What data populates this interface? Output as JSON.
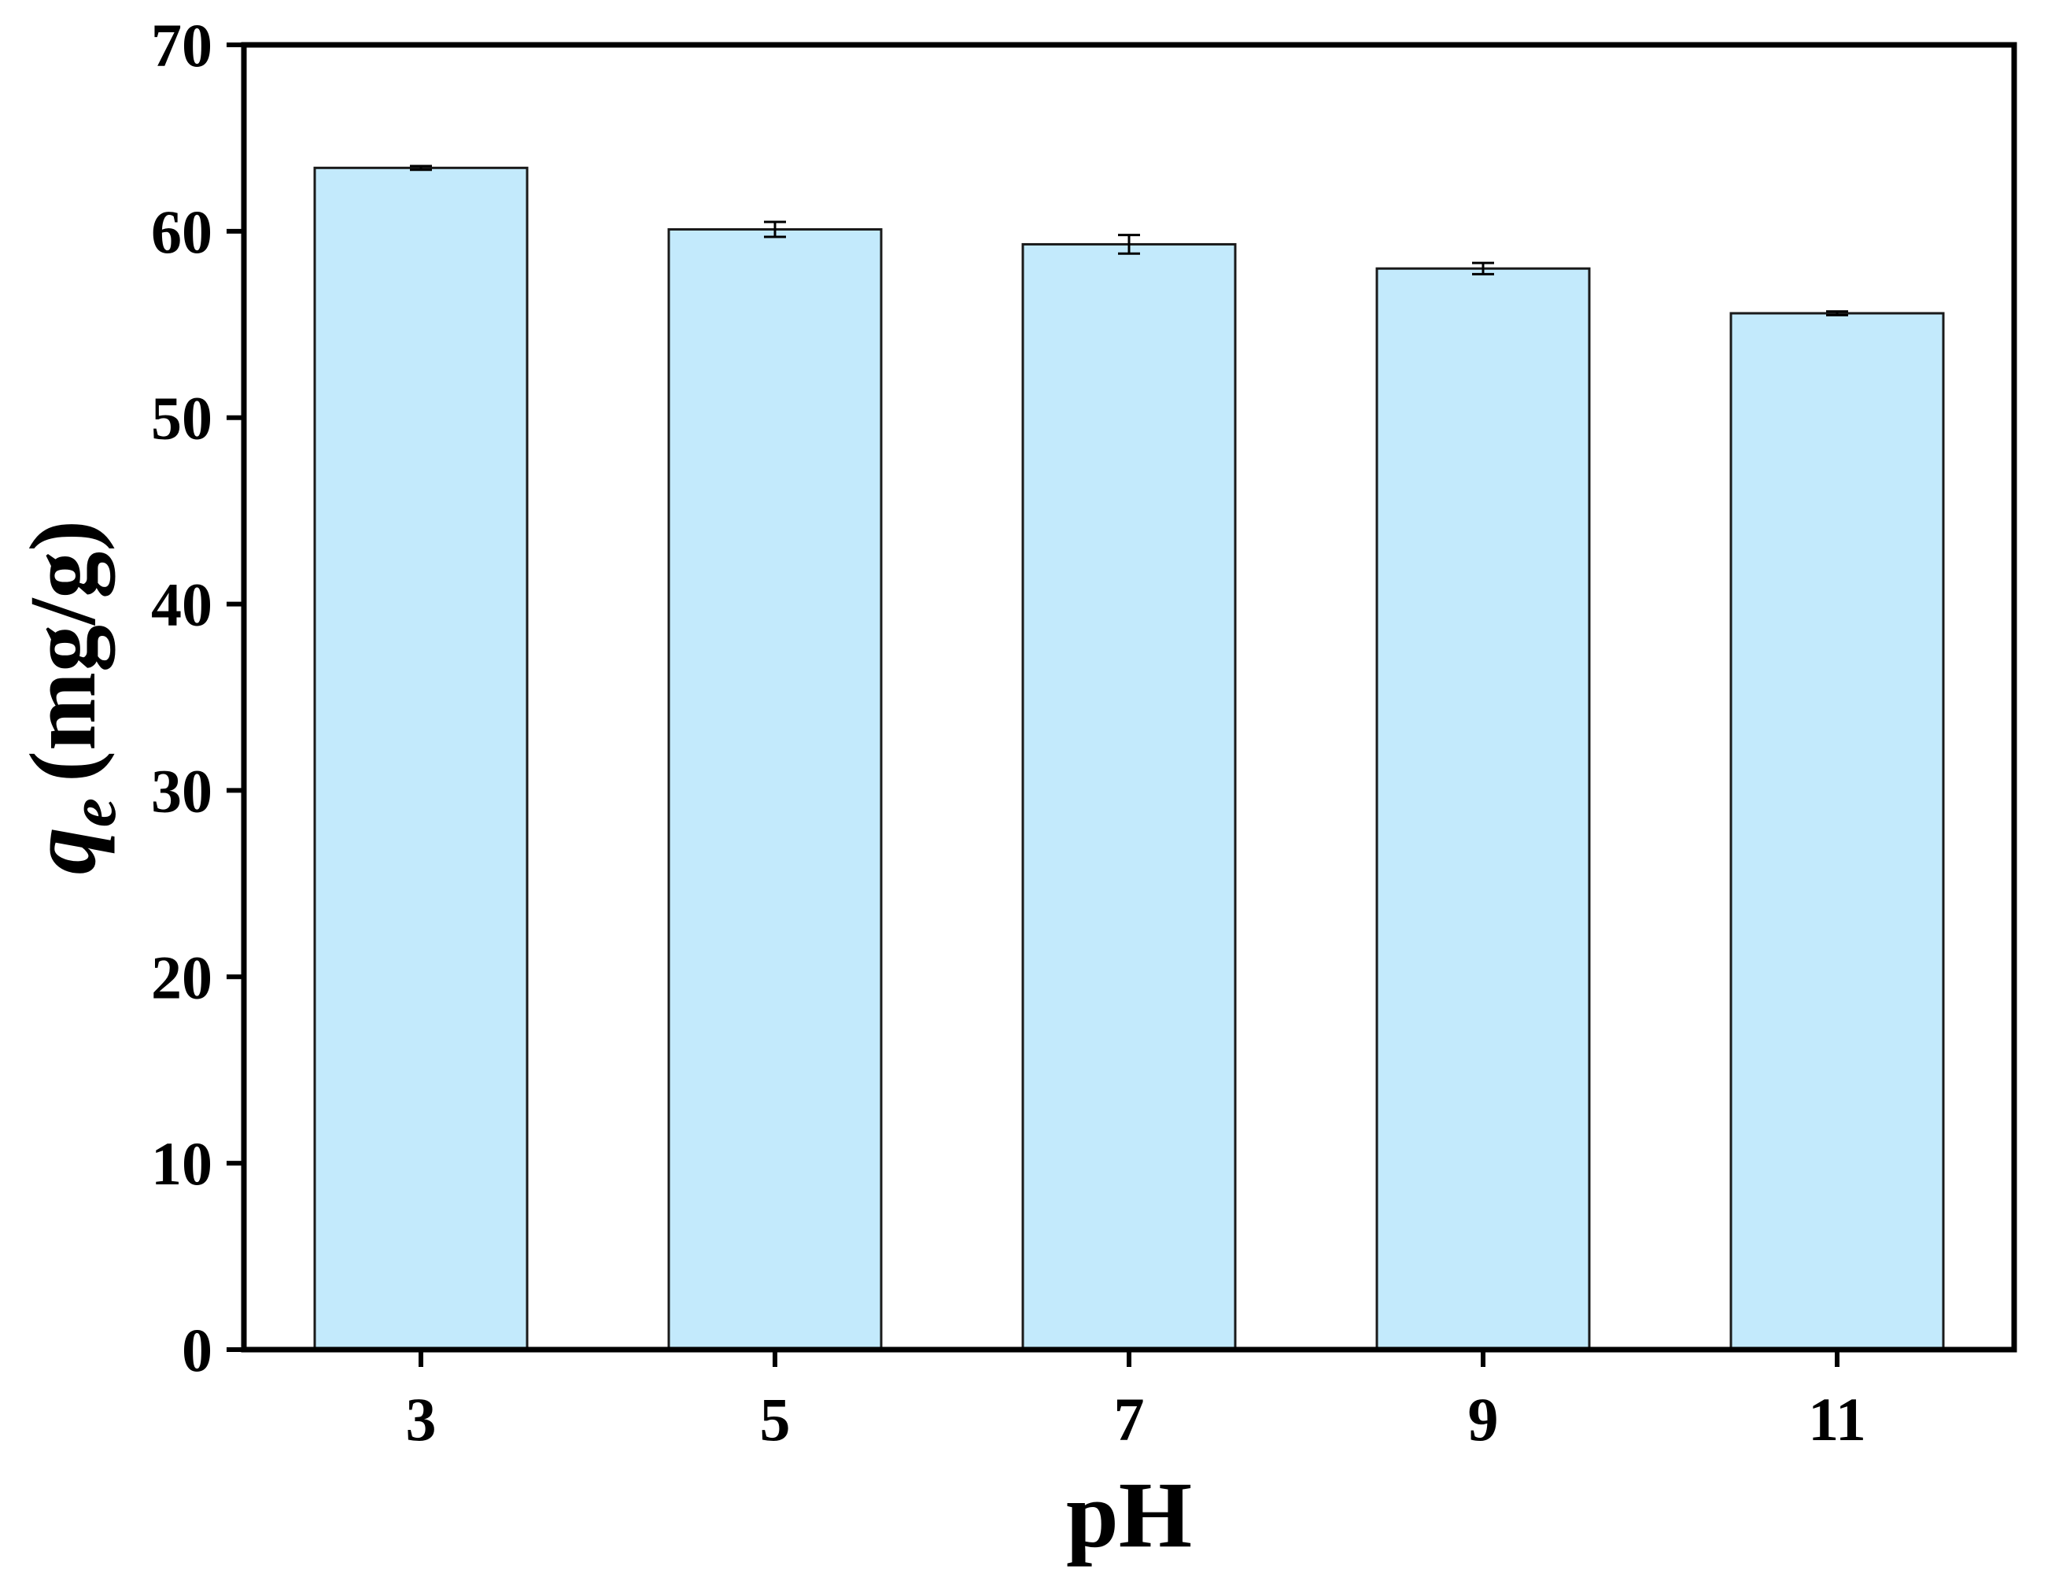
{
  "chart_data": {
    "type": "bar",
    "title": "",
    "xlabel": "pH",
    "ylabel": {
      "symbol": "q",
      "subscript": "e",
      "unit": "(mg/g)"
    },
    "categories": [
      "3",
      "5",
      "7",
      "9",
      "11"
    ],
    "series": [
      {
        "values": [
          63.4,
          60.1,
          59.3,
          58.0,
          55.6
        ],
        "errors": [
          0.1,
          0.4,
          0.5,
          0.3,
          0.1
        ]
      }
    ],
    "ylim": [
      0,
      70
    ],
    "yticks": [
      "0",
      "10",
      "20",
      "30",
      "40",
      "50",
      "60",
      "70"
    ],
    "grid": false,
    "legend": "none",
    "colors": {
      "bar_fill": "#c3eafc",
      "bar_stroke": "#1a1a1a",
      "axis": "#000000"
    }
  }
}
